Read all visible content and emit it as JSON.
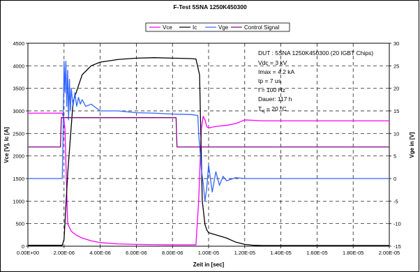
{
  "chart_data": {
    "type": "line",
    "title": "F-Test 5SNA 1250K450300",
    "xlabel": "Zeit in [sec]",
    "ylabel": "Vce [V], Ic [A]",
    "y2label": "Vge in [V]",
    "xlim": [
      0,
      2e-05
    ],
    "ylim": [
      0,
      4500
    ],
    "y2lim": [
      -15,
      30
    ],
    "grid": true,
    "legend_position": "top",
    "x_ticks": [
      "0.00E+00",
      "2.00E-06",
      "4.00E-06",
      "6.00E-06",
      "8.00E-06",
      "1.00E-05",
      "1.20E-05",
      "1.40E-05",
      "1.60E-05",
      "1.80E-05",
      "2.00E-05"
    ],
    "y_ticks": [
      "0",
      "500",
      "1000",
      "1500",
      "2000",
      "2500",
      "3000",
      "3500",
      "4000",
      "4500"
    ],
    "y2_ticks": [
      "-15",
      "-10",
      "-5",
      "0",
      "5",
      "10",
      "15",
      "20",
      "25",
      "30"
    ],
    "annotations": {
      "line1": "DUT : 5SNA 1250K450300 (20 IGBT Chips)",
      "line2": "Vdc = 3 kV",
      "line3": "Imax = 4.2 kA",
      "line4": "tp = 7 us",
      "line5": "f = 100 Hz",
      "line6": "Dauer: 117 h",
      "line7_prefix": "T",
      "line7_sub": "vj",
      "line7_suffix": " = 20 °C"
    },
    "series": [
      {
        "name": "Vce",
        "axis": "left",
        "color": "#ff00ff",
        "x": [
          0,
          1.9e-06,
          2e-06,
          2.05e-06,
          2.2e-06,
          2.4e-06,
          2.7e-06,
          3e-06,
          3.5e-06,
          4e-06,
          5e-06,
          6e-06,
          7e-06,
          8e-06,
          9e-06,
          9.3e-06,
          9.45e-06,
          9.6e-06,
          9.7e-06,
          9.8e-06,
          9.9e-06,
          1e-05,
          1.02e-05,
          1.05e-05,
          1.1e-05,
          1.15e-05,
          1.2e-05,
          1.3e-05,
          1.5e-05,
          1.7e-05,
          2e-05
        ],
        "y": [
          2950,
          2950,
          2800,
          2600,
          500,
          330,
          240,
          180,
          120,
          80,
          50,
          40,
          35,
          30,
          30,
          30,
          1000,
          2600,
          2880,
          2800,
          2650,
          2620,
          2640,
          2660,
          2680,
          2720,
          2800,
          2780,
          2780,
          2780,
          2780
        ]
      },
      {
        "name": "Ic",
        "axis": "left",
        "color": "#000000",
        "x": [
          0,
          1.9e-06,
          2e-06,
          2.2e-06,
          2.5e-06,
          3e-06,
          3.5e-06,
          4e-06,
          5e-06,
          6e-06,
          7e-06,
          8e-06,
          9e-06,
          9.3e-06,
          9.5e-06,
          9.65e-06,
          9.8e-06,
          9.9e-06,
          1e-05,
          1.05e-05,
          1.1e-05,
          1.15e-05,
          1.2e-05,
          1.25e-05,
          1.3e-05,
          1.5e-05,
          2e-05
        ],
        "y": [
          20,
          20,
          150,
          1600,
          3200,
          3800,
          4000,
          4080,
          4140,
          4170,
          4180,
          4170,
          4160,
          4150,
          3800,
          1000,
          480,
          360,
          300,
          240,
          180,
          90,
          40,
          20,
          15,
          15,
          15
        ]
      },
      {
        "name": "Vge",
        "axis": "right",
        "color": "#3366ff",
        "x": [
          0,
          1.8e-06,
          1.9e-06,
          1.95e-06,
          2e-06,
          2.05e-06,
          2.1e-06,
          2.15e-06,
          2.2e-06,
          2.25e-06,
          2.3e-06,
          2.35e-06,
          2.4e-06,
          2.5e-06,
          2.6e-06,
          2.7e-06,
          2.8e-06,
          2.9e-06,
          3e-06,
          3.2e-06,
          3.5e-06,
          4e-06,
          5e-06,
          6e-06,
          7e-06,
          8e-06,
          9e-06,
          9.4e-06,
          9.45e-06,
          9.55e-06,
          9.6e-06,
          9.7e-06,
          9.8e-06,
          9.9e-06,
          1e-05,
          1.02e-05,
          1.04e-05,
          1.06e-05,
          1.08e-05,
          1.1e-05,
          1.15e-05,
          1.2e-05,
          1.4e-05,
          1.6e-05,
          2e-05
        ],
        "y": [
          0,
          0,
          0,
          10,
          26,
          19,
          26,
          16,
          24,
          13,
          22,
          15,
          20,
          16,
          19,
          16,
          18,
          16.5,
          17.5,
          16,
          16.5,
          15,
          15,
          14.6,
          14.5,
          14.3,
          14.2,
          14,
          10,
          5,
          2,
          -1,
          -5,
          -2,
          3,
          -3,
          1.5,
          -1.5,
          0.5,
          -0.5,
          0.2,
          0,
          0,
          0,
          0
        ]
      },
      {
        "name": "Control Signal",
        "axis": "right",
        "color": "#800080",
        "x": [
          0,
          1.8e-06,
          1.85e-06,
          8.2e-06,
          8.25e-06,
          2e-05
        ],
        "y": [
          7,
          7,
          13.5,
          13.5,
          7,
          7
        ]
      }
    ]
  }
}
